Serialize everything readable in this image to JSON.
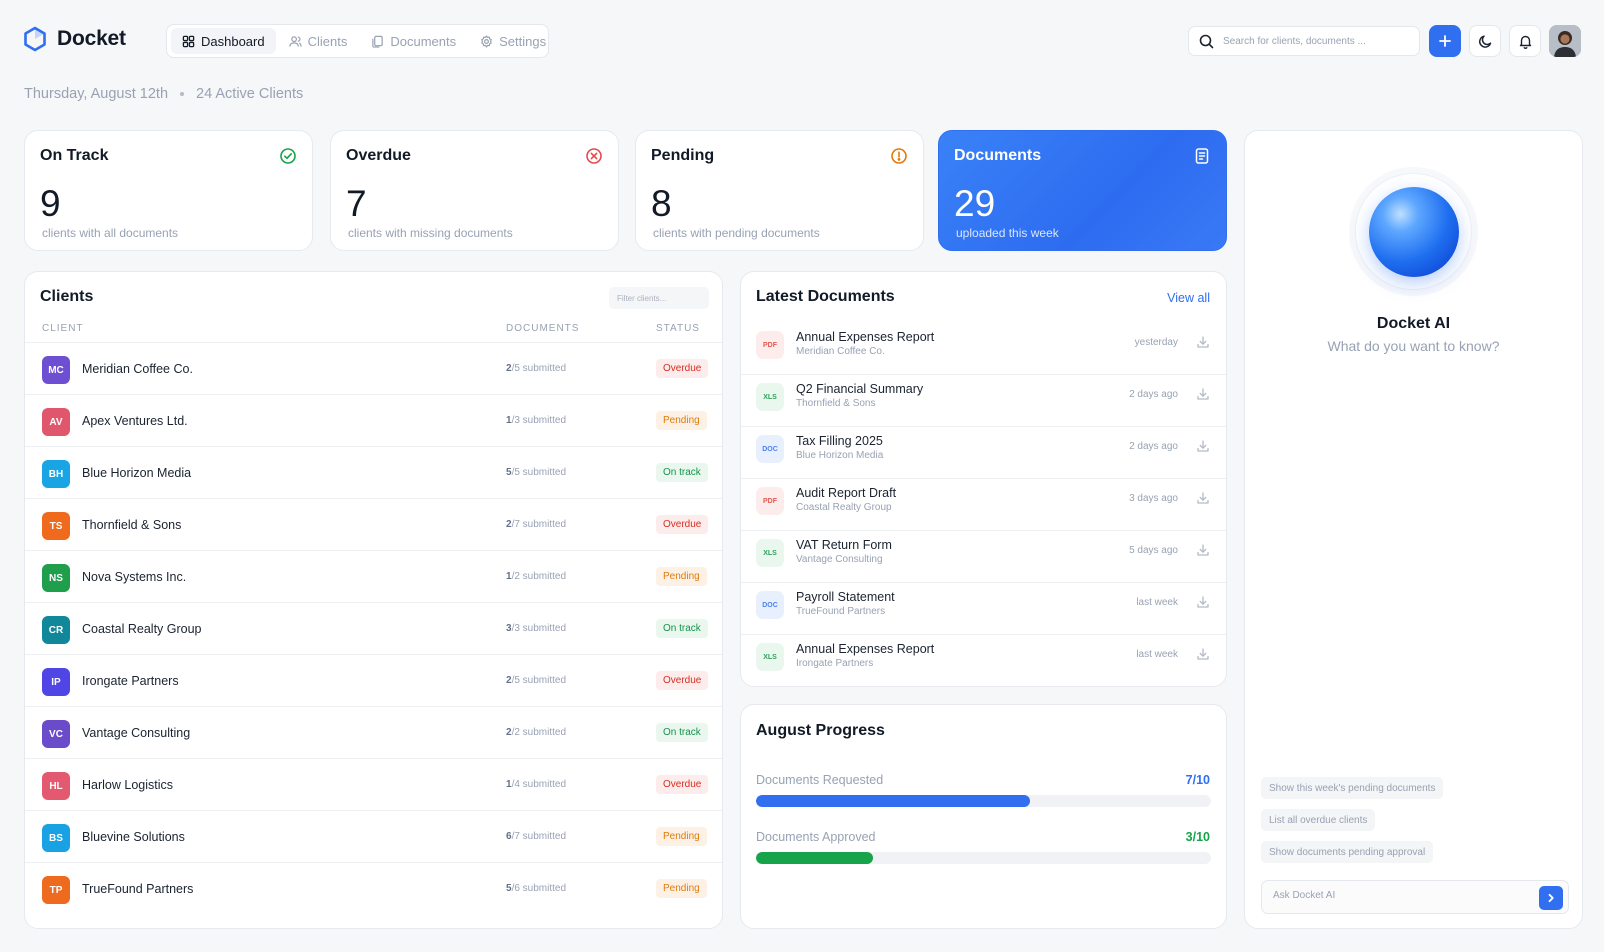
{
  "brand": {
    "name": "Docket",
    "accent": "#2f6ff0"
  },
  "nav": [
    {
      "label": "Dashboard",
      "icon": "grid-icon",
      "active": true
    },
    {
      "label": "Clients",
      "icon": "users-icon",
      "active": false
    },
    {
      "label": "Documents",
      "icon": "files-icon",
      "active": false
    },
    {
      "label": "Settings",
      "icon": "gear-icon",
      "active": false
    }
  ],
  "search": {
    "placeholder": "Search for clients, documents ..."
  },
  "subheader": {
    "date": "Thursday, August 12th",
    "active_clients": "24 Active Clients"
  },
  "stats": [
    {
      "title": "On Track",
      "value": "9",
      "sub": "clients with all documents",
      "icon": "check-circle-icon",
      "color": "#16a34a"
    },
    {
      "title": "Overdue",
      "value": "7",
      "sub": "clients with missing documents",
      "icon": "x-circle-icon",
      "color": "#e5484d"
    },
    {
      "title": "Pending",
      "value": "8",
      "sub": "clients with pending documents",
      "icon": "alert-circle-icon",
      "color": "#e07b0b"
    },
    {
      "title": "Documents",
      "value": "29",
      "sub": "uploaded this week",
      "icon": "document-icon",
      "color": "#ffffff"
    }
  ],
  "clients": {
    "title": "Clients",
    "filter_placeholder": "Filter clients...",
    "columns": {
      "client": "CLIENT",
      "documents": "DOCUMENTS",
      "status": "STATUS"
    },
    "rows": [
      {
        "initials": "MC",
        "name": "Meridian Coffee Co.",
        "done": "2",
        "total": "/5 submitted",
        "status": "Overdue",
        "kind": "overdue",
        "color": "#6d4fd1"
      },
      {
        "initials": "AV",
        "name": "Apex Ventures Ltd.",
        "done": "1",
        "total": "/3 submitted",
        "status": "Pending",
        "kind": "pending",
        "color": "#e0566c"
      },
      {
        "initials": "BH",
        "name": "Blue Horizon Media",
        "done": "5",
        "total": "/5 submitted",
        "status": "On track",
        "kind": "ontrack",
        "color": "#19a4e4"
      },
      {
        "initials": "TS",
        "name": "Thornfield & Sons",
        "done": "2",
        "total": "/7 submitted",
        "status": "Overdue",
        "kind": "overdue",
        "color": "#ef6a1c"
      },
      {
        "initials": "NS",
        "name": "Nova Systems Inc.",
        "done": "1",
        "total": "/2 submitted",
        "status": "Pending",
        "kind": "pending",
        "color": "#1f9e4c"
      },
      {
        "initials": "CR",
        "name": "Coastal Realty Group",
        "done": "3",
        "total": "/3 submitted",
        "status": "On track",
        "kind": "ontrack",
        "color": "#11879a"
      },
      {
        "initials": "IP",
        "name": "Irongate Partners",
        "done": "2",
        "total": "/5 submitted",
        "status": "Overdue",
        "kind": "overdue",
        "color": "#4f46e5"
      },
      {
        "initials": "VC",
        "name": "Vantage Consulting",
        "done": "2",
        "total": "/2 submitted",
        "status": "On track",
        "kind": "ontrack",
        "color": "#6a4bc9"
      },
      {
        "initials": "HL",
        "name": "Harlow Logistics",
        "done": "1",
        "total": "/4 submitted",
        "status": "Overdue",
        "kind": "overdue",
        "color": "#e35a70"
      },
      {
        "initials": "BS",
        "name": "Bluevine Solutions",
        "done": "6",
        "total": "/7 submitted",
        "status": "Pending",
        "kind": "pending",
        "color": "#18a2e3"
      },
      {
        "initials": "TP",
        "name": " TrueFound Partners",
        "done": "5",
        "total": "/6 submitted",
        "status": "Pending",
        "kind": "pending",
        "color": "#ee6a1e"
      }
    ]
  },
  "latest": {
    "title": "Latest Documents",
    "view_all": "View all",
    "rows": [
      {
        "type": "PDF",
        "kind": "pdf",
        "name": "Annual Expenses Report",
        "client": "Meridian Coffee Co.",
        "time": "yesterday"
      },
      {
        "type": "XLS",
        "kind": "xls",
        "name": "Q2 Financial Summary",
        "client": "Thornfield & Sons",
        "time": "2 days ago"
      },
      {
        "type": "DOC",
        "kind": "doc",
        "name": "Tax Filling 2025",
        "client": "Blue Horizon Media",
        "time": "2 days ago"
      },
      {
        "type": "PDF",
        "kind": "pdf",
        "name": "Audit Report Draft",
        "client": "Coastal Realty Group",
        "time": "3 days ago"
      },
      {
        "type": "XLS",
        "kind": "xls",
        "name": "VAT Return Form",
        "client": "Vantage Consulting",
        "time": "5 days ago"
      },
      {
        "type": "DOC",
        "kind": "doc",
        "name": "Payroll Statement",
        "client": "TrueFound Partners",
        "time": "last week"
      },
      {
        "type": "XLS",
        "kind": "xls",
        "name": "Annual Expenses Report",
        "client": "Irongate Partners",
        "time": "last week"
      }
    ]
  },
  "progress": {
    "title": "August Progress",
    "items": [
      {
        "label": "Documents Requested",
        "value": "7/10",
        "fraction": 0.7,
        "color": "#2f6ff0"
      },
      {
        "label": "Documents  Approved",
        "value": "3/10",
        "fraction": 0.3,
        "color": "#16a34a"
      }
    ]
  },
  "ai": {
    "title": "Docket AI",
    "subtitle": "What do you want to know?",
    "suggestions": [
      "Show this week's pending documents",
      "List all overdue clients",
      "Show documents pending approval"
    ],
    "input_placeholder": "Ask Docket AI"
  }
}
